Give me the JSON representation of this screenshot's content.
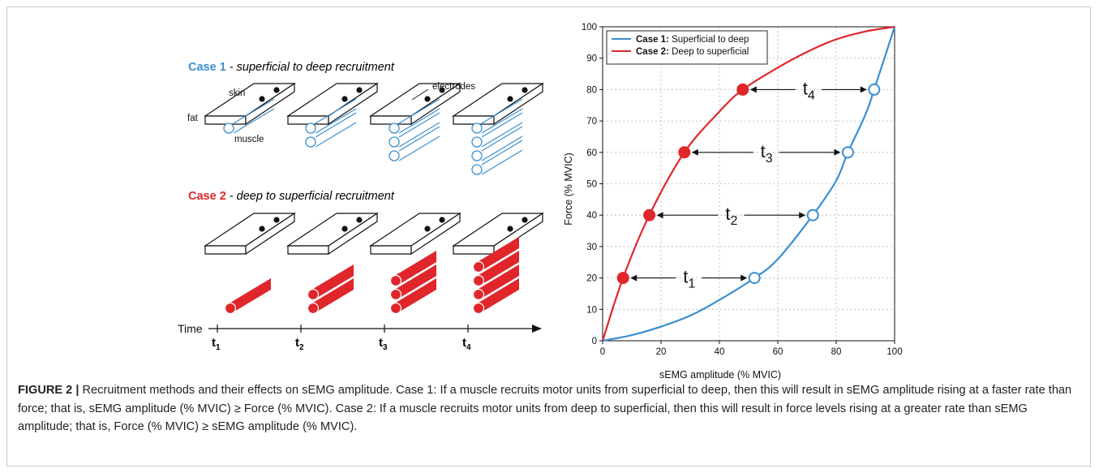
{
  "figure": {
    "label": "FIGURE 2 |",
    "caption": "Recruitment methods and their effects on sEMG amplitude. Case 1: If a muscle recruits motor units from superficial to deep, then this will result in sEMG amplitude rising at a faster rate than force; that is, sEMG amplitude (% MVIC) ≥ Force (% MVIC). Case 2: If a muscle recruits motor units from deep to superficial, then this will result in force levels rising at a greater rate than sEMG amplitude; that is, Force (% MVIC) ≥ sEMG amplitude (% MVIC)."
  },
  "diagram": {
    "case1_label": "Case 1",
    "case1_desc": " - superficial to deep recruitment",
    "case2_label": "Case 2",
    "case2_desc": " - deep to superficial recruitment",
    "skin_label": "skin",
    "fat_label": "fat",
    "muscle_label": "muscle",
    "electrodes_label": "electrodes",
    "time_label": "Time",
    "time_ticks": [
      {
        "t": "t",
        "sub": "1"
      },
      {
        "t": "t",
        "sub": "2"
      },
      {
        "t": "t",
        "sub": "3"
      },
      {
        "t": "t",
        "sub": "4"
      }
    ],
    "case1_color": "#3a8fd1",
    "case2_color": "#e0262b"
  },
  "chart_data": {
    "type": "line",
    "xlabel": "sEMG amplitude (% MVIC)",
    "ylabel": "Force (% MVIC)",
    "xlim": [
      0,
      100
    ],
    "ylim": [
      0,
      100
    ],
    "xticks": [
      0,
      20,
      40,
      60,
      80,
      100
    ],
    "yticks": [
      0,
      10,
      20,
      30,
      40,
      50,
      60,
      70,
      80,
      90,
      100
    ],
    "grid": true,
    "legend_position": "top-left",
    "series": [
      {
        "name_bold": "Case 1:",
        "name_rest": " Superficial to deep",
        "color": "#3a8fd1",
        "x": [
          0,
          10,
          20,
          30,
          40,
          52,
          60,
          72,
          80,
          84,
          90,
          93,
          100
        ],
        "y": [
          0,
          1.8,
          4.5,
          8,
          13,
          20,
          26,
          40,
          51,
          60,
          72,
          80,
          100
        ],
        "markers": {
          "style": "open",
          "x": [
            52,
            72,
            84,
            93
          ],
          "y": [
            20,
            40,
            60,
            80
          ]
        }
      },
      {
        "name_bold": "Case 2:",
        "name_rest": " Deep to superficial",
        "color": "#e0262b",
        "x": [
          0,
          7,
          16,
          28,
          40,
          48,
          60,
          70,
          80,
          90,
          100
        ],
        "y": [
          0,
          20,
          40,
          60,
          73,
          80,
          87,
          92,
          96,
          98.5,
          100
        ],
        "markers": {
          "style": "filled",
          "x": [
            7,
            16,
            28,
            48
          ],
          "y": [
            20,
            40,
            60,
            80
          ]
        }
      }
    ],
    "annotations": [
      {
        "label": "t",
        "sub": "1",
        "y": 20,
        "x_from": 7,
        "x_to": 52
      },
      {
        "label": "t",
        "sub": "2",
        "y": 40,
        "x_from": 16,
        "x_to": 72
      },
      {
        "label": "t",
        "sub": "3",
        "y": 60,
        "x_from": 28,
        "x_to": 84
      },
      {
        "label": "t",
        "sub": "4",
        "y": 80,
        "x_from": 48,
        "x_to": 93
      }
    ]
  }
}
